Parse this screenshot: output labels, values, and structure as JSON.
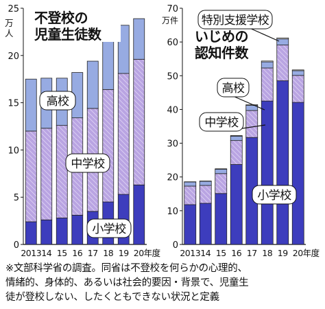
{
  "chart_data": [
    {
      "type": "bar",
      "stacked": true,
      "title": "不登校の児童生徒数",
      "title_lines": [
        "不登校の",
        "児童生徒数"
      ],
      "unit": "万人",
      "unit_lines": [
        "万",
        "人"
      ],
      "x_labels": [
        "2013",
        "14",
        "15",
        "16",
        "17",
        "18",
        "19",
        "20年度"
      ],
      "ylim": [
        0,
        25
      ],
      "yticks": [
        0,
        5,
        10,
        15,
        20,
        25
      ],
      "series": [
        {
          "name": "小学校",
          "color": "#3d3dbd",
          "values": [
            2.4,
            2.6,
            2.8,
            3.1,
            3.5,
            4.5,
            5.3,
            6.3
          ]
        },
        {
          "name": "中学校",
          "color": "#b9a4e2",
          "values": [
            9.6,
            9.7,
            9.8,
            10.3,
            10.9,
            11.9,
            12.8,
            13.3
          ]
        },
        {
          "name": "高校",
          "color": "#97abe2",
          "values": [
            5.5,
            5.3,
            5.0,
            4.8,
            5.0,
            5.3,
            5.1,
            4.3
          ]
        }
      ]
    },
    {
      "type": "bar",
      "stacked": true,
      "title": "いじめの認知件数",
      "title_lines": [
        "いじめの",
        "認知件数"
      ],
      "unit": "万件",
      "unit_lines": [
        "万件"
      ],
      "x_labels": [
        "2013",
        "14",
        "15",
        "16",
        "17",
        "18",
        "19",
        "20年度"
      ],
      "ylim": [
        0,
        70
      ],
      "yticks": [
        0,
        10,
        20,
        30,
        40,
        50,
        60,
        70
      ],
      "series": [
        {
          "name": "小学校",
          "color": "#3d3dbd",
          "values": [
            11.8,
            12.2,
            15.1,
            23.7,
            31.7,
            42.5,
            48.5,
            42.1
          ]
        },
        {
          "name": "中学校",
          "color": "#b9a4e2",
          "values": [
            5.5,
            5.3,
            5.9,
            7.1,
            8.0,
            9.8,
            10.6,
            8.0
          ]
        },
        {
          "name": "高校",
          "color": "#97abe2",
          "values": [
            1.2,
            1.2,
            1.3,
            1.3,
            1.5,
            1.8,
            1.8,
            1.4
          ]
        },
        {
          "name": "特別支援学校",
          "color": "#ffffff",
          "values": [
            0.08,
            0.1,
            0.13,
            0.17,
            0.23,
            0.27,
            0.31,
            0.23
          ]
        }
      ]
    }
  ],
  "note_lines": [
    "※文部科学省の調査。同省は不登校を何らかの心理的、",
    "情緒的、身体的、あるいは社会的要因・背景で、児童生",
    "徒が登校しない、したくともできない状況と定義"
  ],
  "note": "※文部科学省の調査。同省は不登校を何らかの心理的、情緒的、身体的、あるいは社会的要因・背景で、児童生徒が登校しない、したくともできない状況と定義"
}
